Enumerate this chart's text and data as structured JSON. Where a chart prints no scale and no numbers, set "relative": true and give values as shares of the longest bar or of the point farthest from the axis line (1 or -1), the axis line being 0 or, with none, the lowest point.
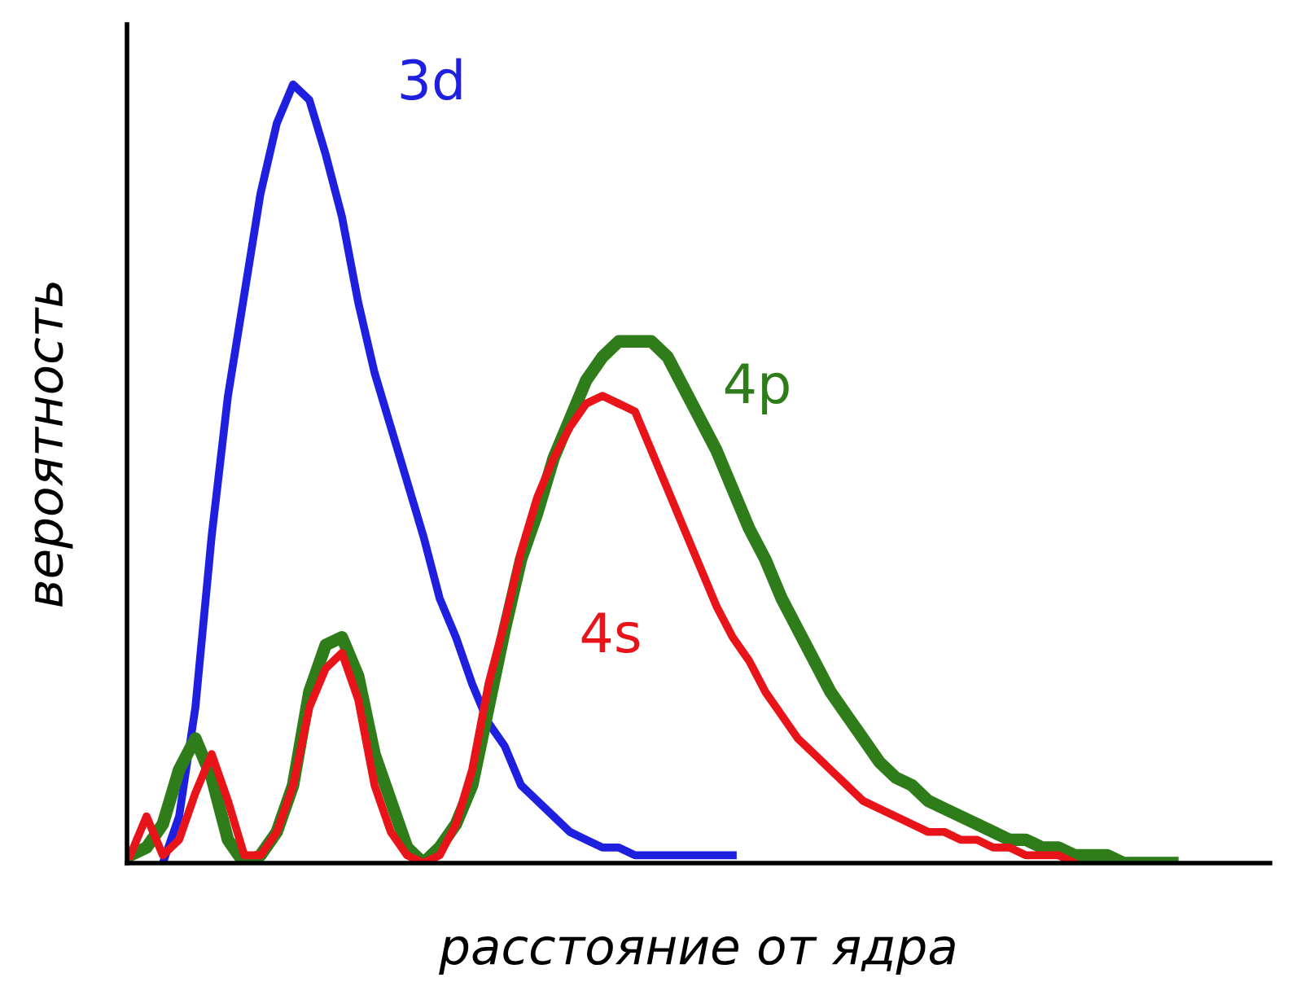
{
  "chart_data": {
    "type": "line",
    "relative": true,
    "xlabel": "расстояние от ядра",
    "ylabel": "вероятность",
    "categories": [
      null,
      null,
      null,
      null,
      null,
      null,
      null,
      null,
      null,
      null,
      null,
      null,
      null,
      null,
      null,
      null,
      null,
      null,
      null,
      null,
      null,
      null,
      null,
      null,
      null,
      null,
      null,
      null,
      null,
      null,
      null,
      null,
      null,
      null,
      null,
      null,
      null,
      null,
      null,
      null,
      null,
      null,
      null,
      null,
      null,
      null,
      null,
      null,
      null,
      null,
      null,
      null,
      null,
      null,
      null,
      null,
      null,
      null,
      null,
      null,
      null,
      null,
      null,
      null,
      null
    ],
    "series": [
      {
        "name": "3d",
        "color": "#1f1fe0",
        "values": [
          null,
          null,
          0.0,
          0.06,
          0.2,
          0.42,
          0.6,
          0.73,
          0.86,
          0.95,
          1.0,
          0.98,
          0.91,
          0.83,
          0.72,
          0.63,
          0.56,
          0.49,
          0.42,
          0.34,
          0.29,
          0.23,
          0.18,
          0.15,
          0.1,
          0.08,
          0.06,
          0.04,
          0.03,
          0.02,
          0.02,
          0.01,
          0.01,
          0.01,
          0.01,
          0.01,
          0.01,
          0.01,
          null,
          null,
          null,
          null,
          null,
          null,
          null,
          null,
          null,
          null,
          null,
          null,
          null,
          null,
          null,
          null,
          null,
          null,
          null,
          null,
          null,
          null,
          null,
          null,
          null,
          null,
          null
        ]
      },
      {
        "name": "4p",
        "color": "#2e7d1a",
        "values": [
          0.01,
          0.02,
          0.05,
          0.12,
          0.16,
          0.11,
          0.03,
          0.0,
          0.01,
          0.04,
          0.1,
          0.22,
          0.28,
          0.29,
          0.24,
          0.14,
          0.08,
          0.02,
          0.0,
          0.02,
          0.05,
          0.1,
          0.2,
          0.3,
          0.39,
          0.45,
          0.52,
          0.57,
          0.62,
          0.65,
          0.67,
          0.67,
          0.67,
          0.65,
          0.61,
          0.57,
          0.53,
          0.48,
          0.43,
          0.39,
          0.34,
          0.3,
          0.26,
          0.22,
          0.19,
          0.16,
          0.13,
          0.11,
          0.1,
          0.08,
          0.07,
          0.06,
          0.05,
          0.04,
          0.03,
          0.03,
          0.02,
          0.02,
          0.01,
          0.01,
          0.01,
          0.0,
          0.0,
          0.0,
          0.0
        ]
      },
      {
        "name": "4s",
        "color": "#e8141a",
        "values": [
          0.01,
          0.06,
          0.01,
          0.03,
          0.09,
          0.14,
          0.08,
          0.01,
          0.01,
          0.04,
          0.1,
          0.2,
          0.25,
          0.27,
          0.21,
          0.1,
          0.04,
          0.01,
          0.0,
          0.01,
          0.05,
          0.12,
          0.23,
          0.31,
          0.4,
          0.47,
          0.52,
          0.56,
          0.59,
          0.6,
          0.59,
          0.58,
          0.53,
          0.48,
          0.43,
          0.38,
          0.33,
          0.29,
          0.26,
          0.22,
          0.19,
          0.16,
          0.14,
          0.12,
          0.1,
          0.08,
          0.07,
          0.06,
          0.05,
          0.04,
          0.04,
          0.03,
          0.03,
          0.02,
          0.02,
          0.01,
          0.01,
          0.01,
          0.0,
          null,
          null,
          null,
          null,
          null,
          null
        ]
      }
    ]
  }
}
